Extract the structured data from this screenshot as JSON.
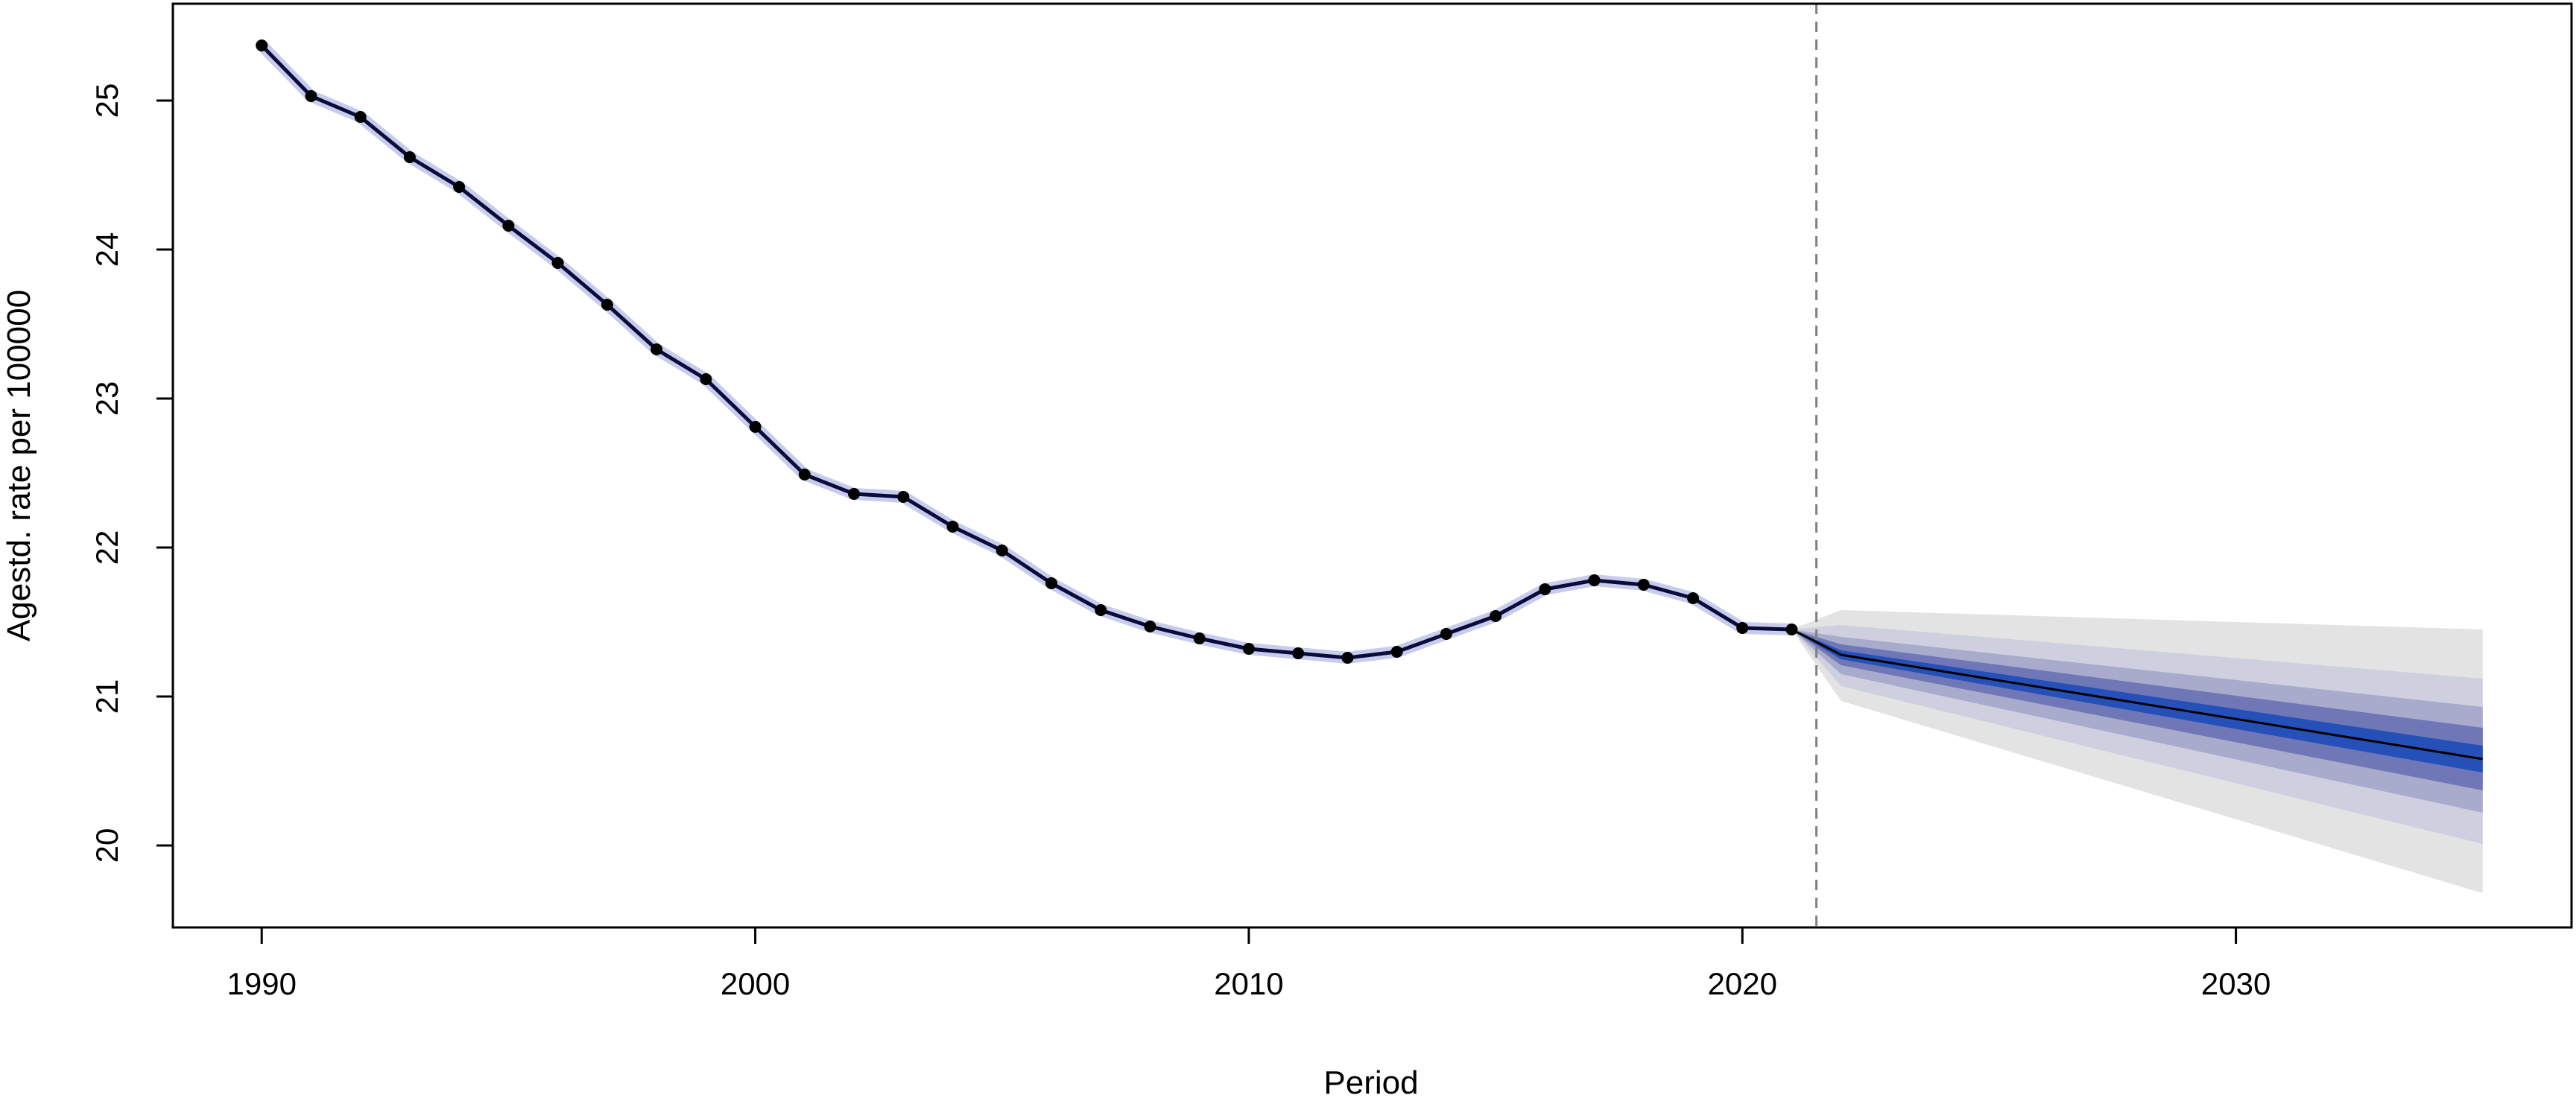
{
  "chart_data": {
    "type": "line",
    "title": "",
    "xlabel": "Period",
    "ylabel": "Agestd. rate per 100000",
    "xlim": [
      1988.2,
      2036.8
    ],
    "ylim": [
      19.45,
      25.65
    ],
    "x_ticks": [
      1990,
      2000,
      2010,
      2020,
      2030
    ],
    "y_ticks": [
      20,
      21,
      22,
      23,
      24,
      25
    ],
    "grid": false,
    "legend": "none",
    "forecast_start_marker": 2021.5,
    "observed": {
      "x": [
        1990,
        1991,
        1992,
        1993,
        1994,
        1995,
        1996,
        1997,
        1998,
        1999,
        2000,
        2001,
        2002,
        2003,
        2004,
        2005,
        2006,
        2007,
        2008,
        2009,
        2010,
        2011,
        2012,
        2013,
        2014,
        2015,
        2016,
        2017,
        2018,
        2019,
        2020,
        2021
      ],
      "y": [
        25.37,
        25.03,
        24.89,
        24.62,
        24.42,
        24.16,
        23.91,
        23.63,
        23.33,
        23.13,
        22.81,
        22.49,
        22.36,
        22.34,
        22.14,
        21.98,
        21.76,
        21.58,
        21.47,
        21.39,
        21.32,
        21.29,
        21.26,
        21.3,
        21.42,
        21.54,
        21.72,
        21.78,
        21.75,
        21.66,
        21.46,
        21.45
      ]
    },
    "forecast": {
      "x": [
        2021,
        2022,
        2035
      ],
      "mean": [
        21.45,
        21.28,
        20.58
      ],
      "bands": [
        {
          "level": "outer",
          "upper": [
            21.45,
            21.58,
            21.45
          ],
          "lower": [
            21.45,
            20.97,
            19.68
          ]
        },
        {
          "level": "2",
          "upper": [
            21.45,
            21.48,
            21.12
          ],
          "lower": [
            21.45,
            21.07,
            20.01
          ]
        },
        {
          "level": "3",
          "upper": [
            21.45,
            21.4,
            20.93
          ],
          "lower": [
            21.45,
            21.15,
            20.22
          ]
        },
        {
          "level": "4",
          "upper": [
            21.45,
            21.35,
            20.79
          ],
          "lower": [
            21.45,
            21.21,
            20.37
          ]
        },
        {
          "level": "inner",
          "upper": [
            21.45,
            21.31,
            20.67
          ],
          "lower": [
            21.45,
            21.25,
            20.49
          ]
        }
      ]
    },
    "colors": {
      "line": "#0b0b3b",
      "points": "#000000",
      "band_outer": "#e3e3e3",
      "band_2": "#cfd0df",
      "band_3": "#a9abcd",
      "band_4": "#6f77b6",
      "band_inner": "#2450b8",
      "marker": "#808080",
      "line_halo": "#c8ccec"
    }
  }
}
